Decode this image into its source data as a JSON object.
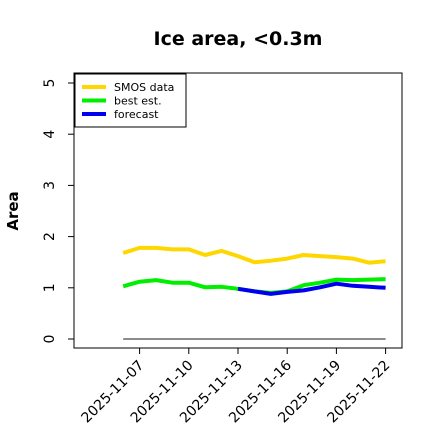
{
  "chart_data": {
    "type": "line",
    "title": "Ice area, <0.3m",
    "xlabel": "",
    "ylabel": "Area",
    "ylim": [
      0,
      5
    ],
    "yticks": [
      "0",
      "1",
      "2",
      "3",
      "4",
      "5"
    ],
    "xlim": [
      "2025-11-03",
      "2025-11-23"
    ],
    "xticks": [
      {
        "label": "2025-11-07",
        "color": "#000000"
      },
      {
        "label": "2025-11-10",
        "color": "#000000"
      },
      {
        "label": "2025-11-13",
        "color": "#228b22"
      },
      {
        "label": "2025-11-16",
        "color": "#000000"
      },
      {
        "label": "2025-11-19",
        "color": "#000000"
      },
      {
        "label": "2025-11-22",
        "color": "#000000"
      }
    ],
    "legend_position": "top-left",
    "grid": false,
    "series": [
      {
        "name": "SMOS data",
        "color": "#ffd700",
        "x": [
          "2025-11-06",
          "2025-11-07",
          "2025-11-08",
          "2025-11-09",
          "2025-11-10",
          "2025-11-11",
          "2025-11-12",
          "2025-11-13",
          "2025-11-14",
          "2025-11-15",
          "2025-11-16",
          "2025-11-17",
          "2025-11-18",
          "2025-11-19",
          "2025-11-20",
          "2025-11-21",
          "2025-11-22"
        ],
        "y": [
          1.68,
          1.78,
          1.78,
          1.75,
          1.75,
          1.64,
          1.72,
          1.62,
          1.5,
          1.53,
          1.57,
          1.64,
          1.62,
          1.6,
          1.57,
          1.49,
          1.52
        ]
      },
      {
        "name": "best est.",
        "color": "#00ee00",
        "x": [
          "2025-11-06",
          "2025-11-07",
          "2025-11-08",
          "2025-11-09",
          "2025-11-10",
          "2025-11-11",
          "2025-11-12",
          "2025-11-13",
          "2025-11-14",
          "2025-11-15",
          "2025-11-16",
          "2025-11-17",
          "2025-11-18",
          "2025-11-19",
          "2025-11-20",
          "2025-11-21",
          "2025-11-22"
        ],
        "y": [
          1.03,
          1.12,
          1.15,
          1.1,
          1.1,
          1.01,
          1.02,
          0.98,
          0.93,
          0.9,
          0.93,
          1.05,
          1.1,
          1.16,
          1.15,
          1.16,
          1.17
        ]
      },
      {
        "name": "forecast",
        "color": "#0000ee",
        "x": [
          "2025-11-13",
          "2025-11-14",
          "2025-11-15",
          "2025-11-16",
          "2025-11-17",
          "2025-11-18",
          "2025-11-19",
          "2025-11-20",
          "2025-11-21",
          "2025-11-22"
        ],
        "y": [
          0.98,
          0.93,
          0.88,
          0.92,
          0.95,
          1.01,
          1.08,
          1.04,
          1.02,
          1.0
        ]
      }
    ],
    "reference_line": {
      "color": "#666666",
      "x": [
        "2025-11-06",
        "2025-11-22"
      ],
      "y": 0
    }
  }
}
